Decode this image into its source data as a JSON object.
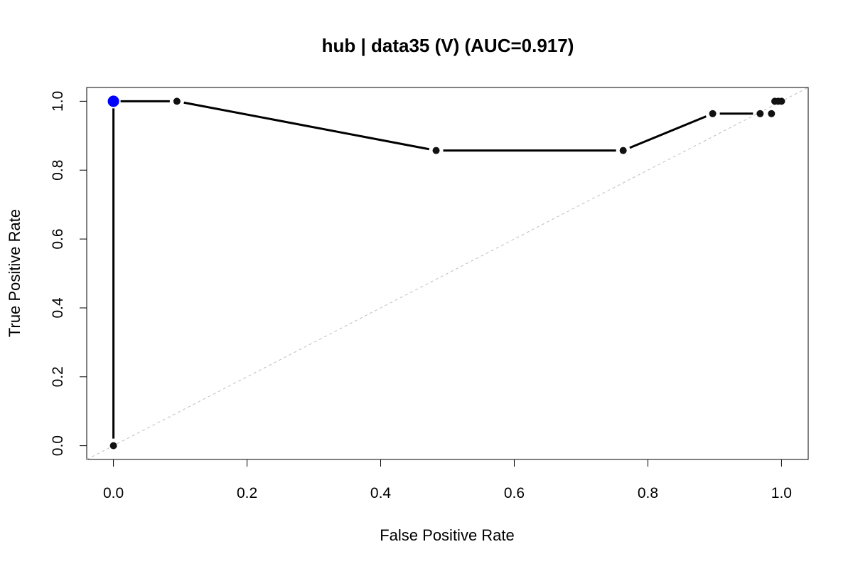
{
  "chart_data": {
    "type": "line",
    "title": "hub | data35 (V) (AUC=0.917)",
    "xlabel": "False Positive Rate",
    "ylabel": "True Positive Rate",
    "xlim": [
      -0.04,
      1.04
    ],
    "ylim": [
      -0.04,
      1.04
    ],
    "x_ticks": [
      "0.0",
      "0.2",
      "0.4",
      "0.6",
      "0.8",
      "1.0"
    ],
    "y_ticks": [
      "0.0",
      "0.2",
      "0.4",
      "0.6",
      "0.8",
      "1.0"
    ],
    "grid": false,
    "reference_line": "diagonal",
    "series": [
      {
        "x": [
          0.0,
          0.0,
          0.095,
          0.483,
          0.763,
          0.897,
          0.968,
          0.985,
          0.99,
          0.995,
          1.0
        ],
        "y": [
          0.0,
          1.0,
          1.0,
          0.857,
          0.857,
          0.964,
          0.964,
          0.964,
          1.0,
          1.0,
          1.0
        ]
      }
    ],
    "highlight_point": {
      "x": 0.0,
      "y": 1.0
    },
    "colors": {
      "line": "#000000",
      "points": "#111111",
      "highlight": "#0000ff",
      "diagonal": "#bfbfbf"
    }
  }
}
